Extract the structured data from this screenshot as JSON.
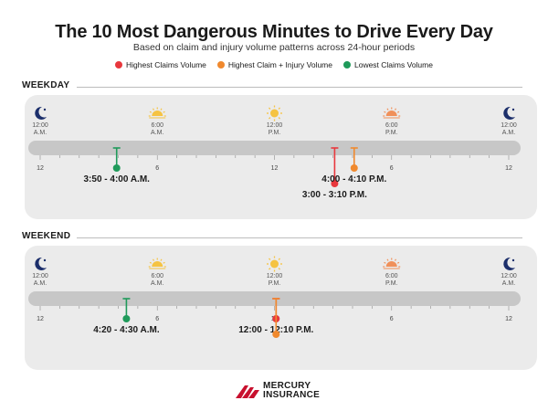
{
  "title": "The 10 Most Dangerous Minutes to Drive Every Day",
  "subtitle": "Based on claim and injury volume patterns across 24-hour periods",
  "legend": [
    {
      "label": "Highest Claims Volume",
      "color": "#e8383d"
    },
    {
      "label": "Highest Claim + Injury Volume",
      "color": "#f0892e"
    },
    {
      "label": "Lowest Claims Volume",
      "color": "#1f9a5a"
    }
  ],
  "chart_data": [
    {
      "type": "timeline",
      "section": "WEEKDAY",
      "x_range": [
        0,
        24
      ],
      "time_labels": [
        {
          "hour": 0,
          "line1": "12:00",
          "line2": "A.M.",
          "icon": "moon-icon"
        },
        {
          "hour": 6,
          "line1": "6:00",
          "line2": "A.M.",
          "icon": "sunrise-icon"
        },
        {
          "hour": 12,
          "line1": "12:00",
          "line2": "P.M.",
          "icon": "sun-icon"
        },
        {
          "hour": 18,
          "line1": "6:00",
          "line2": "P.M.",
          "icon": "sunset-icon"
        },
        {
          "hour": 24,
          "line1": "12:00",
          "line2": "A.M.",
          "icon": "moon-icon"
        }
      ],
      "tick_labels": [
        {
          "hour": 0,
          "label": "12"
        },
        {
          "hour": 6,
          "label": "6"
        },
        {
          "hour": 12,
          "label": "12"
        },
        {
          "hour": 18,
          "label": "6"
        },
        {
          "hour": 24,
          "label": "12"
        }
      ],
      "markers": [
        {
          "hour": 3.9167,
          "category": "Lowest Claims Volume",
          "color": "#1f9a5a",
          "label": "3:50 - 4:00 A.M.",
          "depth": 1
        },
        {
          "hour": 15.0833,
          "category": "Highest Claims Volume",
          "color": "#e8383d",
          "label": "3:00 - 3:10 P.M.",
          "depth": 2
        },
        {
          "hour": 16.0833,
          "category": "Highest Claim + Injury Volume",
          "color": "#f0892e",
          "label": "4:00 - 4:10 P.M.",
          "depth": 1
        }
      ]
    },
    {
      "type": "timeline",
      "section": "WEEKEND",
      "x_range": [
        0,
        24
      ],
      "time_labels": [
        {
          "hour": 0,
          "line1": "12:00",
          "line2": "A.M.",
          "icon": "moon-icon"
        },
        {
          "hour": 6,
          "line1": "6:00",
          "line2": "A.M.",
          "icon": "sunrise-icon"
        },
        {
          "hour": 12,
          "line1": "12:00",
          "line2": "P.M.",
          "icon": "sun-icon"
        },
        {
          "hour": 18,
          "line1": "6:00",
          "line2": "P.M.",
          "icon": "sunset-icon"
        },
        {
          "hour": 24,
          "line1": "12:00",
          "line2": "A.M.",
          "icon": "moon-icon"
        }
      ],
      "tick_labels": [
        {
          "hour": 0,
          "label": "12"
        },
        {
          "hour": 6,
          "label": "6"
        },
        {
          "hour": 12,
          "label": "12"
        },
        {
          "hour": 18,
          "label": "6"
        },
        {
          "hour": 24,
          "label": "12"
        }
      ],
      "markers": [
        {
          "hour": 4.4167,
          "category": "Lowest Claims Volume",
          "color": "#1f9a5a",
          "label": "4:20 - 4:30 A.M.",
          "depth": 1
        },
        {
          "hour": 12.0833,
          "category": "Highest Claims Volume",
          "color": "#e8383d",
          "label": "12:00 - 12:10 P.M.",
          "depth": 1
        },
        {
          "hour": 12.0833,
          "category": "Highest Claim + Injury Volume",
          "color": "#f0892e",
          "label": "",
          "depth": 2
        }
      ]
    }
  ],
  "logo": {
    "line1": "MERCURY",
    "line2": "INSURANCE"
  }
}
